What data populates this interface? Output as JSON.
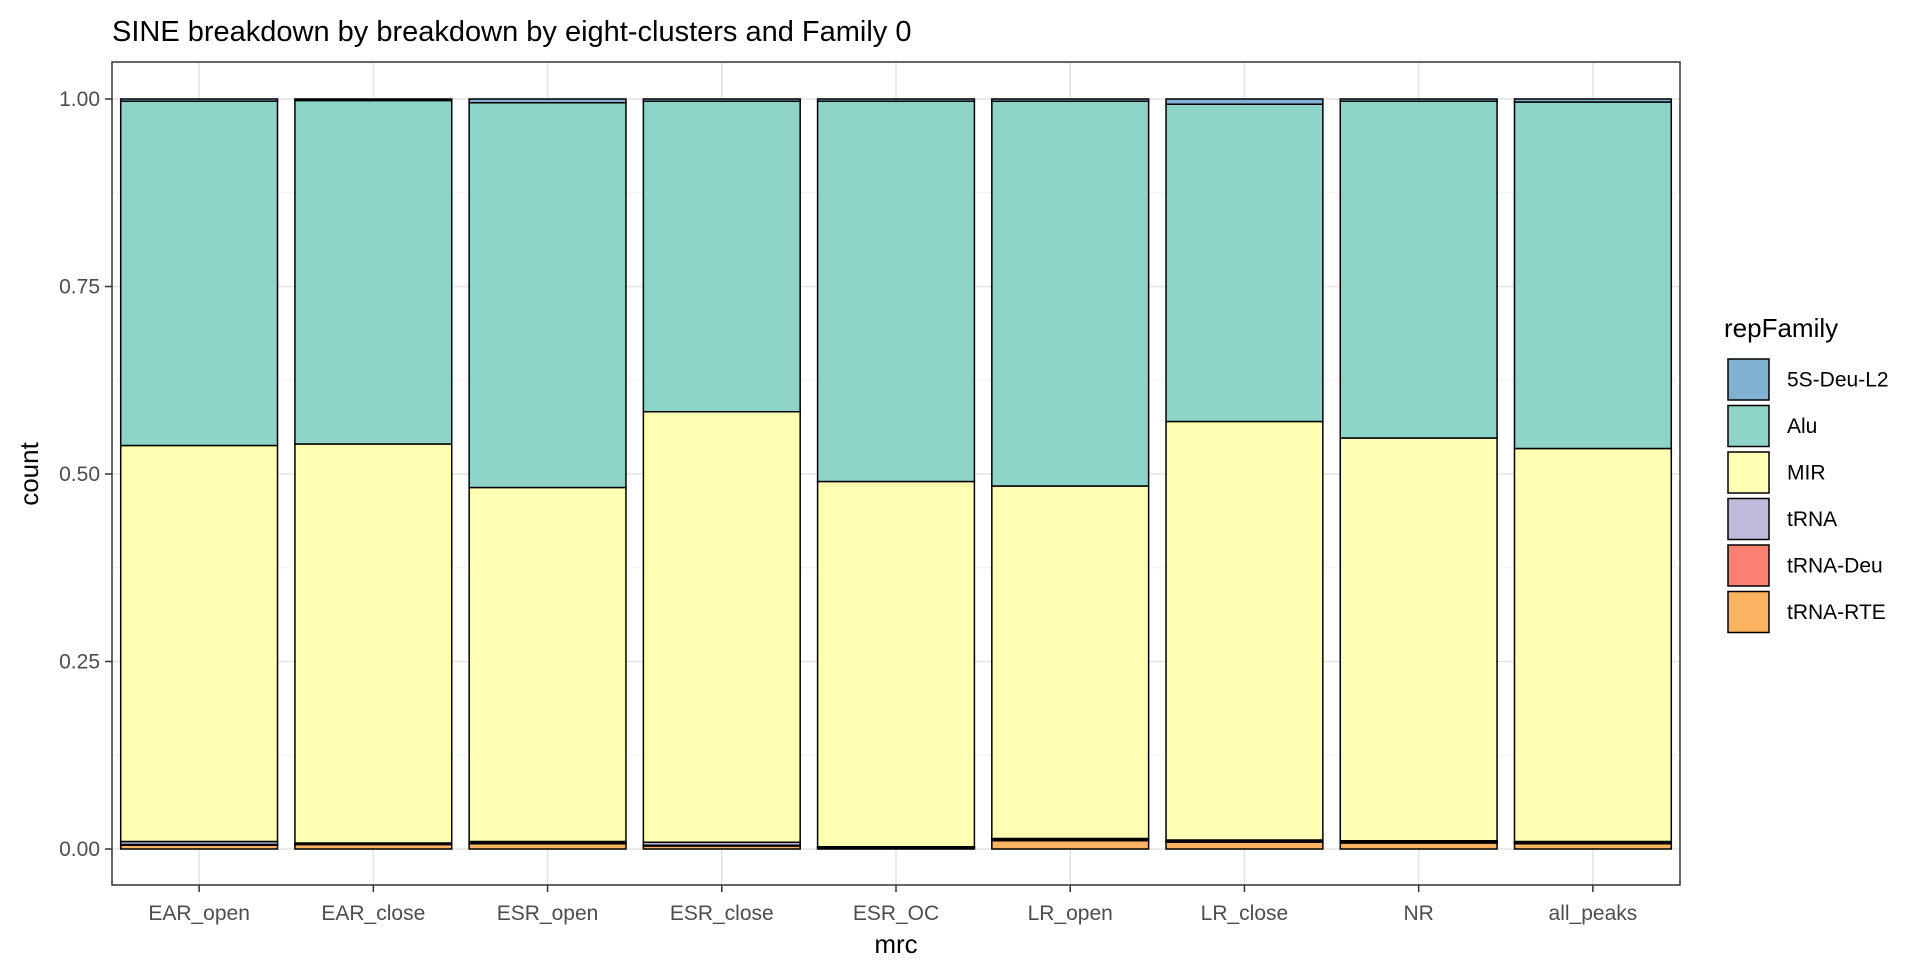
{
  "chart_data": {
    "type": "bar",
    "stacked": true,
    "position": "fill",
    "title": "SINE breakdown by breakdown by eight-clusters and Family 0",
    "xlabel": "mrc",
    "ylabel": "count",
    "ylim": [
      0,
      1
    ],
    "yticks": [
      0.0,
      0.25,
      0.5,
      0.75,
      1.0
    ],
    "ytick_labels": [
      "0.00",
      "0.25",
      "0.50",
      "0.75",
      "1.00"
    ],
    "grid": true,
    "legend_position": "right",
    "legend_title": "repFamily",
    "categories": [
      "EAR_open",
      "EAR_close",
      "ESR_open",
      "ESR_close",
      "ESR_OC",
      "LR_open",
      "LR_close",
      "NR",
      "all_peaks"
    ],
    "stack_order": [
      "tRNA-RTE",
      "tRNA-Deu",
      "tRNA",
      "MIR",
      "Alu",
      "5S-Deu-L2"
    ],
    "series": [
      {
        "name": "5S-Deu-L2",
        "color": "#80B1D3",
        "values": [
          0.003,
          0.002,
          0.005,
          0.003,
          0.003,
          0.003,
          0.007,
          0.003,
          0.004
        ]
      },
      {
        "name": "Alu",
        "color": "#8DD3C7",
        "values": [
          0.459,
          0.458,
          0.513,
          0.414,
          0.507,
          0.513,
          0.423,
          0.449,
          0.462
        ]
      },
      {
        "name": "MIR",
        "color": "#FFFFB3",
        "values": [
          0.528,
          0.532,
          0.472,
          0.574,
          0.487,
          0.47,
          0.558,
          0.537,
          0.524
        ]
      },
      {
        "name": "tRNA",
        "color": "#BEBADA",
        "values": [
          0.004,
          0.001,
          0.002,
          0.004,
          0.001,
          0.002,
          0.002,
          0.002,
          0.002
        ]
      },
      {
        "name": "tRNA-Deu",
        "color": "#FB8072",
        "values": [
          0.001,
          0.001,
          0.001,
          0.001,
          0.0005,
          0.001,
          0.001,
          0.001,
          0.001
        ]
      },
      {
        "name": "tRNA-RTE",
        "color": "#FDB462",
        "values": [
          0.005,
          0.006,
          0.007,
          0.004,
          0.0015,
          0.011,
          0.009,
          0.008,
          0.007
        ]
      }
    ]
  }
}
